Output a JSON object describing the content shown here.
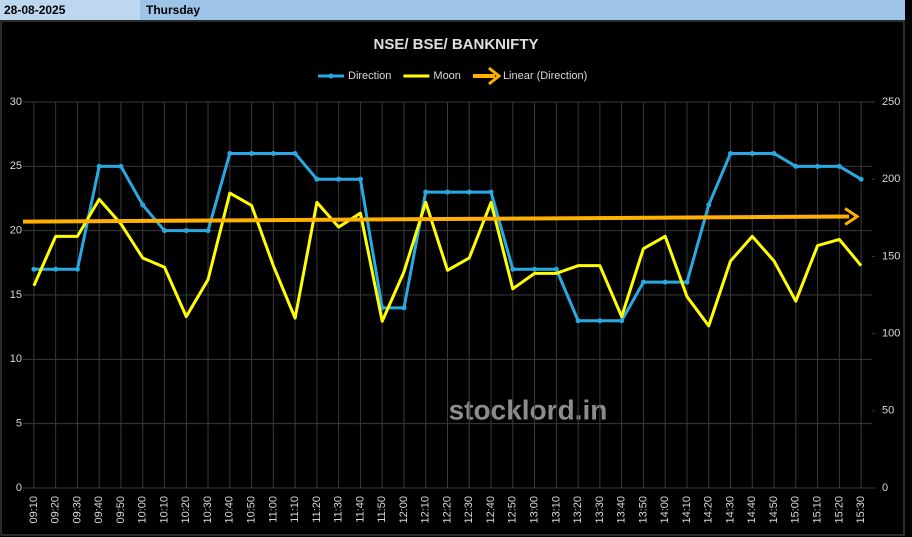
{
  "header": {
    "date": "28-08-2025",
    "day": "Thursday"
  },
  "watermark": "stocklord.in",
  "chart_data": {
    "type": "line",
    "title": "NSE/ BSE/ BANKNIFTY",
    "categories": [
      "09:10",
      "09:20",
      "09:30",
      "09:40",
      "09:50",
      "10:00",
      "10:10",
      "10:20",
      "10:30",
      "10:40",
      "10:50",
      "11:00",
      "11:10",
      "11:20",
      "11:30",
      "11:40",
      "11:50",
      "12:00",
      "12:10",
      "12:20",
      "12:30",
      "12:40",
      "12:50",
      "13:00",
      "13:10",
      "13:20",
      "13:30",
      "13:40",
      "13:50",
      "14:00",
      "14:10",
      "14:20",
      "14:30",
      "14:40",
      "14:50",
      "15:00",
      "15:10",
      "15:20",
      "15:30"
    ],
    "series": [
      {
        "name": "Direction",
        "color": "#29a9e1",
        "markers": true,
        "values": [
          17,
          17,
          17,
          25,
          25,
          22,
          20,
          20,
          20,
          26,
          26,
          26,
          26,
          24,
          24,
          24,
          14,
          14,
          23,
          23,
          23,
          23,
          17,
          17,
          17,
          13,
          13,
          13,
          16,
          16,
          16,
          22,
          26,
          26,
          26,
          25,
          25,
          25,
          24
        ]
      },
      {
        "name": "Moon",
        "color": "#ffff00",
        "axis": "y2",
        "values": [
          131,
          163,
          163,
          187,
          171,
          149,
          143,
          111,
          135,
          191,
          183,
          144,
          110,
          185,
          169,
          178,
          108,
          140,
          185,
          141,
          149,
          185,
          129,
          139,
          139,
          144,
          144,
          111,
          155,
          163,
          124,
          105,
          147,
          163,
          147,
          121,
          157,
          161,
          144
        ]
      }
    ],
    "trendline": {
      "name": "Linear (Direction)",
      "color": "#ffb000",
      "start": 20.7,
      "end": 21.1
    },
    "ylim": [
      0,
      30
    ],
    "yticks": [
      0,
      5,
      10,
      15,
      20,
      25,
      30
    ],
    "y2lim": [
      0,
      250
    ],
    "y2ticks": [
      0,
      50,
      100,
      150,
      200,
      250
    ],
    "grid": true
  }
}
